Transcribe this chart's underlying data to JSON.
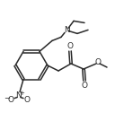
{
  "bg_color": "#ffffff",
  "line_color": "#2a2a2a",
  "line_width": 1.1,
  "figsize": [
    1.38,
    1.45
  ],
  "dpi": 100,
  "xlim": [
    0,
    138
  ],
  "ylim": [
    0,
    145
  ]
}
